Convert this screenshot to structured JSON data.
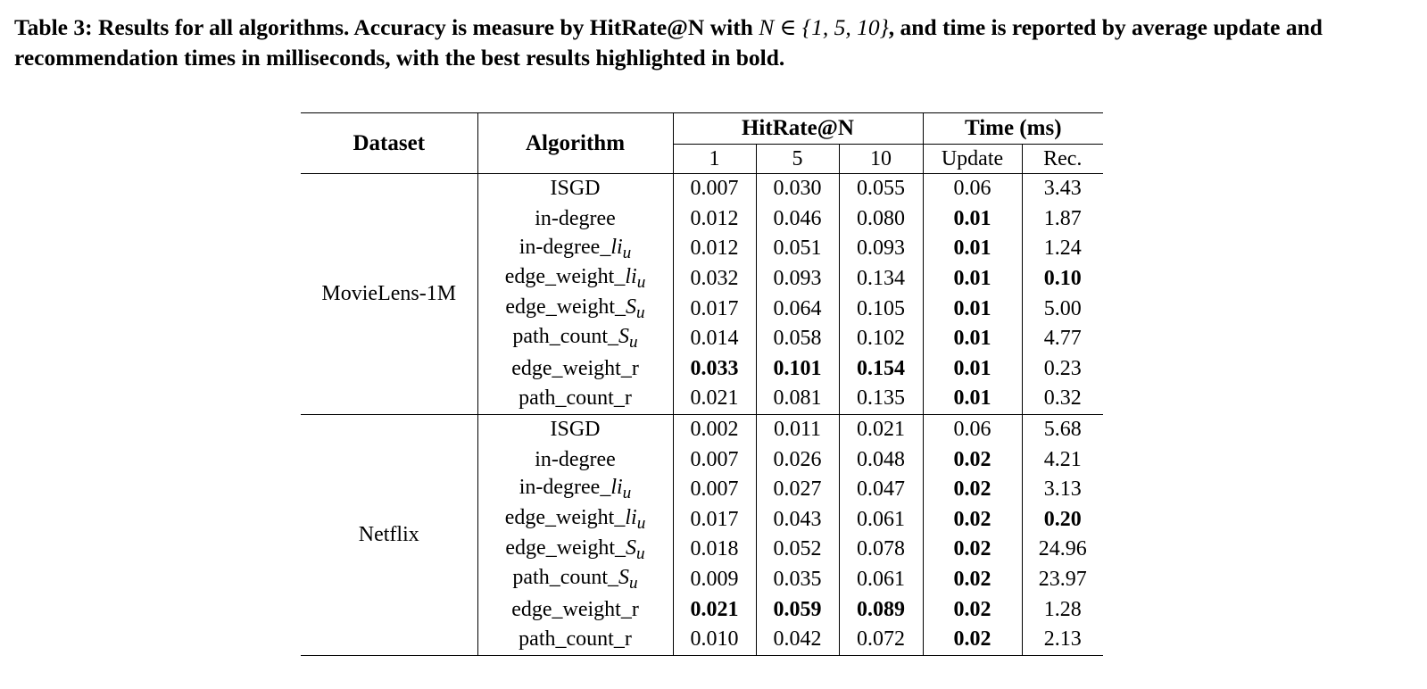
{
  "caption": {
    "part1": "Table 3: Results for all algorithms. Accuracy is measure by HitRate@N with ",
    "math": "N ∈ {1, 5, 10}",
    "part2": ", and time is reported by average update and recommendation times in milliseconds, with the best results highlighted in bold."
  },
  "table": {
    "headers": {
      "dataset": "Dataset",
      "algorithm": "Algorithm",
      "hitrate_group": "HitRate@N",
      "time_group": "Time (ms)",
      "sub": [
        "1",
        "5",
        "10",
        "Update",
        "Rec."
      ]
    },
    "groups": [
      {
        "dataset": "MovieLens-1M",
        "rows": [
          {
            "algo": "ISGD",
            "suffix": "",
            "values": [
              "0.007",
              "0.030",
              "0.055",
              "0.06",
              "3.43"
            ],
            "bold": [
              false,
              false,
              false,
              false,
              false
            ]
          },
          {
            "algo": "in-degree",
            "suffix": "",
            "values": [
              "0.012",
              "0.046",
              "0.080",
              "0.01",
              "1.87"
            ],
            "bold": [
              false,
              false,
              false,
              true,
              false
            ]
          },
          {
            "algo": "in-degree_",
            "suffix": "li",
            "sub": "u",
            "values": [
              "0.012",
              "0.051",
              "0.093",
              "0.01",
              "1.24"
            ],
            "bold": [
              false,
              false,
              false,
              true,
              false
            ]
          },
          {
            "algo": "edge_weight_",
            "suffix": "li",
            "sub": "u",
            "values": [
              "0.032",
              "0.093",
              "0.134",
              "0.01",
              "0.10"
            ],
            "bold": [
              false,
              false,
              false,
              true,
              true
            ]
          },
          {
            "algo": "edge_weight_",
            "suffix": "S",
            "sub": "u",
            "values": [
              "0.017",
              "0.064",
              "0.105",
              "0.01",
              "5.00"
            ],
            "bold": [
              false,
              false,
              false,
              true,
              false
            ]
          },
          {
            "algo": "path_count_",
            "suffix": "S",
            "sub": "u",
            "values": [
              "0.014",
              "0.058",
              "0.102",
              "0.01",
              "4.77"
            ],
            "bold": [
              false,
              false,
              false,
              true,
              false
            ]
          },
          {
            "algo": "edge_weight_r",
            "suffix": "",
            "values": [
              "0.033",
              "0.101",
              "0.154",
              "0.01",
              "0.23"
            ],
            "bold": [
              true,
              true,
              true,
              true,
              false
            ]
          },
          {
            "algo": "path_count_r",
            "suffix": "",
            "values": [
              "0.021",
              "0.081",
              "0.135",
              "0.01",
              "0.32"
            ],
            "bold": [
              false,
              false,
              false,
              true,
              false
            ]
          }
        ]
      },
      {
        "dataset": "Netflix",
        "rows": [
          {
            "algo": "ISGD",
            "suffix": "",
            "values": [
              "0.002",
              "0.011",
              "0.021",
              "0.06",
              "5.68"
            ],
            "bold": [
              false,
              false,
              false,
              false,
              false
            ]
          },
          {
            "algo": "in-degree",
            "suffix": "",
            "values": [
              "0.007",
              "0.026",
              "0.048",
              "0.02",
              "4.21"
            ],
            "bold": [
              false,
              false,
              false,
              true,
              false
            ]
          },
          {
            "algo": "in-degree_",
            "suffix": "li",
            "sub": "u",
            "values": [
              "0.007",
              "0.027",
              "0.047",
              "0.02",
              "3.13"
            ],
            "bold": [
              false,
              false,
              false,
              true,
              false
            ]
          },
          {
            "algo": "edge_weight_",
            "suffix": "li",
            "sub": "u",
            "values": [
              "0.017",
              "0.043",
              "0.061",
              "0.02",
              "0.20"
            ],
            "bold": [
              false,
              false,
              false,
              true,
              true
            ]
          },
          {
            "algo": "edge_weight_",
            "suffix": "S",
            "sub": "u",
            "values": [
              "0.018",
              "0.052",
              "0.078",
              "0.02",
              "24.96"
            ],
            "bold": [
              false,
              false,
              false,
              true,
              false
            ]
          },
          {
            "algo": "path_count_",
            "suffix": "S",
            "sub": "u",
            "values": [
              "0.009",
              "0.035",
              "0.061",
              "0.02",
              "23.97"
            ],
            "bold": [
              false,
              false,
              false,
              true,
              false
            ]
          },
          {
            "algo": "edge_weight_r",
            "suffix": "",
            "values": [
              "0.021",
              "0.059",
              "0.089",
              "0.02",
              "1.28"
            ],
            "bold": [
              true,
              true,
              true,
              true,
              false
            ]
          },
          {
            "algo": "path_count_r",
            "suffix": "",
            "values": [
              "0.010",
              "0.042",
              "0.072",
              "0.02",
              "2.13"
            ],
            "bold": [
              false,
              false,
              false,
              true,
              false
            ]
          }
        ]
      }
    ]
  }
}
